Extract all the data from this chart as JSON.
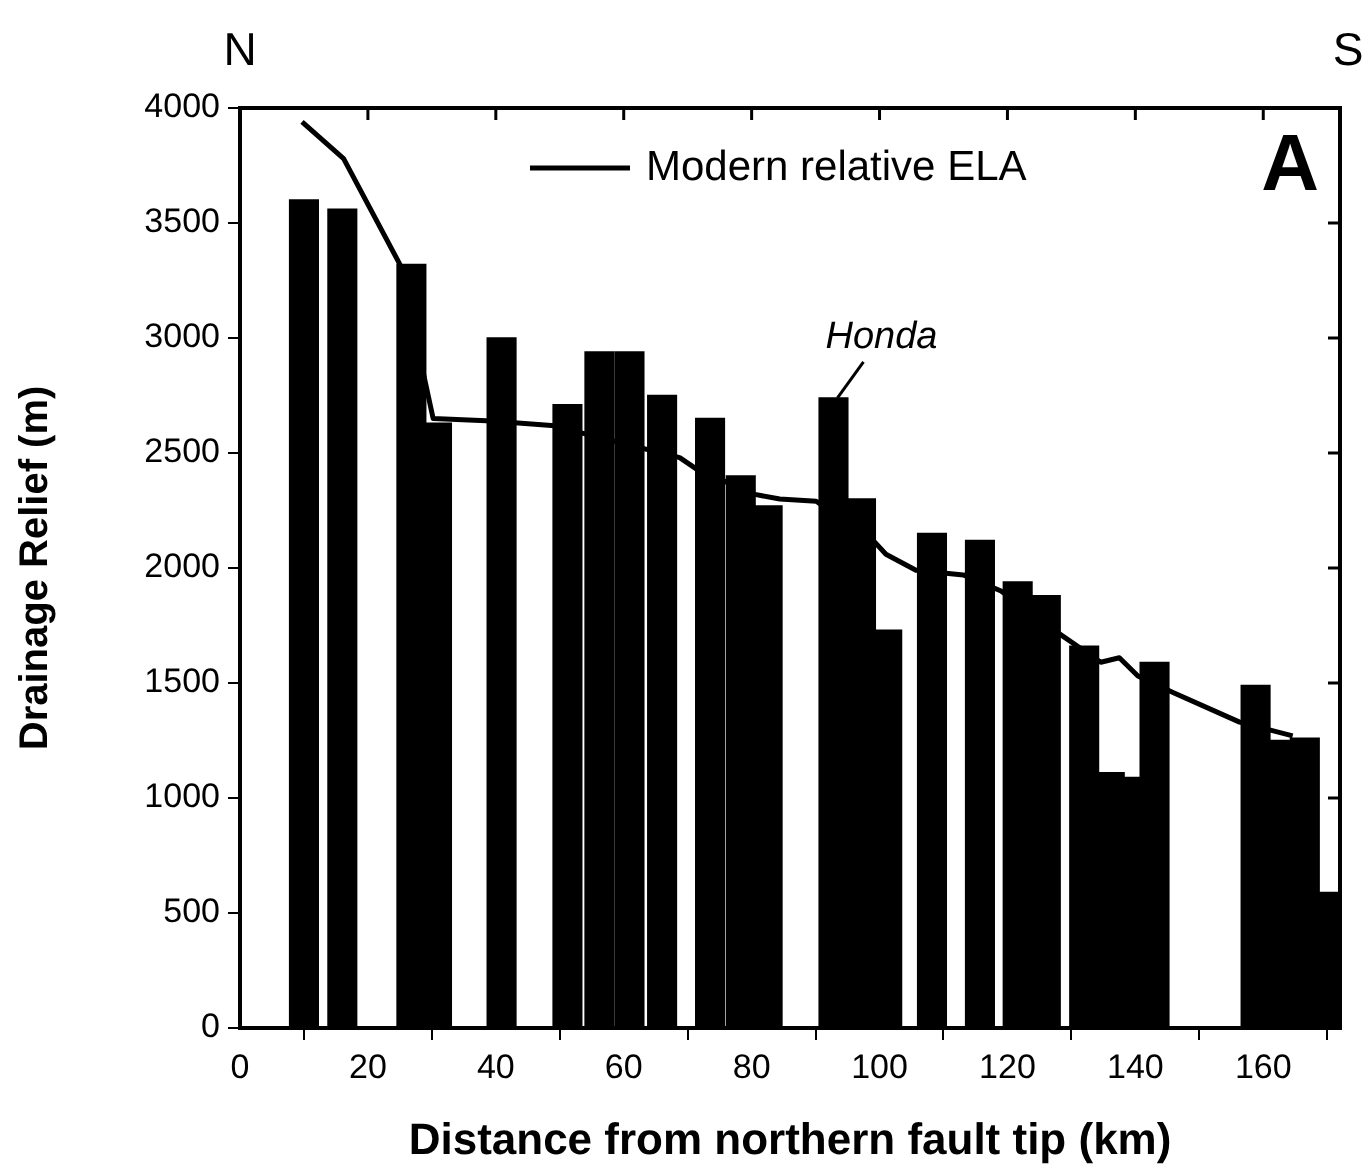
{
  "chart_data": {
    "type": "bar",
    "xlabel": "Distance from northern fault tip (km)",
    "ylabel": "Drainage Relief (m)",
    "x": [
      10,
      16,
      26.8,
      30.8,
      40.9,
      51.2,
      56.2,
      60.9,
      66,
      73.5,
      78.3,
      82.5,
      92.8,
      97.1,
      101.2,
      108.2,
      115.7,
      121.6,
      126,
      132,
      136,
      139,
      143,
      158.8,
      163,
      166.5,
      170
    ],
    "series": [
      {
        "color": "#000000",
        "values": [
          3600,
          3560,
          3320,
          2630,
          3000,
          2710,
          2940,
          2940,
          2750,
          2650,
          2400,
          2270,
          2740,
          2300,
          1730,
          2150,
          2120,
          1940,
          1880,
          1660,
          1110,
          1090,
          1590,
          1490,
          1250,
          1260,
          590
        ]
      },
      {
        "type": "line",
        "name": "Modern relative ELA",
        "color": "#000000",
        "x": [
          9.7,
          16.2,
          25,
          30.2,
          38.5,
          48.7,
          68.75,
          71.4,
          80.5,
          84.4,
          90.1,
          99,
          101,
          105.7,
          113.1,
          119,
          127.8,
          134.6,
          137.5,
          140.4,
          145.8,
          156.3,
          164.6
        ],
        "values": [
          3940,
          3780,
          3320,
          2650,
          2640,
          2620,
          2480,
          2430,
          2320,
          2300,
          2290,
          2120,
          2060,
          1990,
          1970,
          1900,
          1720,
          1590,
          1610,
          1530,
          1460,
          1330,
          1270
        ]
      }
    ],
    "xlim": [
      0,
      172
    ],
    "xticks": [
      0,
      20,
      40,
      60,
      80,
      100,
      120,
      140,
      160
    ],
    "ylim": [
      0,
      4000
    ],
    "yticks": [
      0,
      500,
      1000,
      1500,
      2000,
      2500,
      3000,
      3500,
      4000
    ],
    "grid": false,
    "legend": "top right",
    "marker": "none",
    "line_style": "solid",
    "annotations": [
      "N",
      "S",
      "A",
      {
        "text": "Honda",
        "x": 92.8,
        "y": 2740
      }
    ]
  }
}
